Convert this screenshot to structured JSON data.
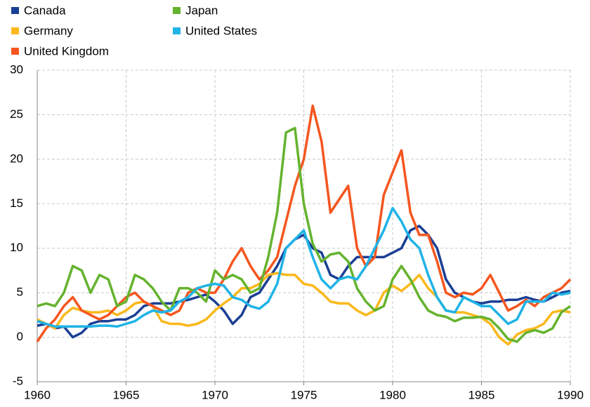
{
  "chart_data": {
    "type": "line",
    "x": [
      1960,
      1960.5,
      1961,
      1961.5,
      1962,
      1962.5,
      1963,
      1963.5,
      1964,
      1964.5,
      1965,
      1965.5,
      1966,
      1966.5,
      1967,
      1967.5,
      1968,
      1968.5,
      1969,
      1969.5,
      1970,
      1970.5,
      1971,
      1971.5,
      1972,
      1972.5,
      1973,
      1973.5,
      1974,
      1974.5,
      1975,
      1975.5,
      1976,
      1976.5,
      1977,
      1977.5,
      1978,
      1978.5,
      1979,
      1979.5,
      1980,
      1980.5,
      1981,
      1981.5,
      1982,
      1982.5,
      1983,
      1983.5,
      1984,
      1984.5,
      1985,
      1985.5,
      1986,
      1986.5,
      1987,
      1987.5,
      1988,
      1988.5,
      1989,
      1989.5,
      1990
    ],
    "series": [
      {
        "name": "Canada",
        "color": "#1b3f94",
        "values": [
          1.3,
          1.5,
          1.0,
          1.2,
          0,
          0.5,
          1.5,
          1.8,
          1.8,
          2.0,
          2.0,
          2.5,
          3.5,
          3.8,
          3.8,
          3.8,
          4.0,
          4.2,
          4.5,
          4.8,
          4.0,
          3.0,
          1.5,
          2.5,
          4.5,
          5.0,
          6.5,
          8.0,
          10.0,
          11.0,
          11.5,
          10.0,
          9.5,
          7.0,
          6.5,
          8.0,
          9.0,
          9.0,
          9.0,
          9.0,
          9.5,
          10.0,
          12.0,
          12.5,
          11.5,
          10.0,
          6.5,
          5.0,
          4.5,
          4.0,
          3.8,
          4.0,
          4.0,
          4.2,
          4.2,
          4.5,
          4.2,
          4.0,
          4.5,
          5.0,
          5.2
        ]
      },
      {
        "name": "Germany",
        "color": "#fbb81b",
        "values": [
          2.0,
          1.5,
          1.0,
          2.5,
          3.3,
          3.0,
          2.8,
          2.8,
          3.0,
          2.5,
          3.0,
          3.8,
          4.0,
          3.5,
          1.8,
          1.5,
          1.5,
          1.3,
          1.5,
          2.0,
          3.0,
          3.8,
          4.5,
          5.5,
          5.5,
          6.0,
          7.0,
          7.2,
          7.0,
          7.0,
          6.0,
          5.8,
          5.0,
          4.0,
          3.8,
          3.8,
          3.0,
          2.5,
          3.0,
          5.0,
          5.8,
          5.2,
          6.0,
          7.0,
          5.5,
          4.5,
          3.0,
          2.8,
          2.8,
          2.5,
          2.2,
          1.5,
          0,
          -0.8,
          0.3,
          0.8,
          1.0,
          1.5,
          2.8,
          3.0,
          2.8
        ]
      },
      {
        "name": "United Kingdom",
        "color": "#f5561f",
        "values": [
          -0.5,
          1.0,
          2.0,
          3.5,
          4.5,
          3.0,
          2.5,
          2.0,
          2.5,
          3.5,
          4.5,
          5.0,
          4.0,
          3.5,
          3.0,
          2.5,
          3.0,
          5.0,
          5.5,
          5.0,
          5.0,
          6.5,
          8.5,
          10.0,
          8.0,
          6.5,
          7.5,
          9.0,
          13.0,
          17.0,
          20.0,
          26.0,
          22.0,
          14.0,
          15.5,
          17.0,
          10.0,
          8.0,
          9.0,
          16.0,
          18.5,
          21.0,
          14.0,
          11.5,
          11.5,
          8.5,
          5.0,
          4.5,
          5.0,
          4.8,
          5.5,
          7.0,
          5.0,
          3.0,
          3.5,
          4.2,
          3.5,
          4.5,
          5.0,
          5.5,
          6.5
        ]
      },
      {
        "name": "Japan",
        "color": "#65b32e",
        "values": [
          3.5,
          3.8,
          3.5,
          5.0,
          8.0,
          7.5,
          5.0,
          7.0,
          6.5,
          3.5,
          4.0,
          7.0,
          6.5,
          5.5,
          4.0,
          3.0,
          5.5,
          5.5,
          5.0,
          4.0,
          7.5,
          6.5,
          7.0,
          6.5,
          5.0,
          5.5,
          9.0,
          14.0,
          23.0,
          23.5,
          15.0,
          10.5,
          8.5,
          9.3,
          9.5,
          8.5,
          5.5,
          4.0,
          3.0,
          3.5,
          6.5,
          8.0,
          6.5,
          4.5,
          3.0,
          2.5,
          2.3,
          1.8,
          2.2,
          2.2,
          2.3,
          2.0,
          1.0,
          -0.2,
          -0.5,
          0.5,
          0.8,
          0.5,
          1.0,
          2.8,
          3.5
        ]
      },
      {
        "name": "United States",
        "color": "#1fb3e6",
        "values": [
          1.8,
          1.5,
          1.2,
          1.2,
          1.2,
          1.2,
          1.2,
          1.3,
          1.3,
          1.2,
          1.5,
          1.8,
          2.5,
          3.0,
          2.8,
          3.0,
          4.0,
          4.5,
          5.5,
          5.8,
          6.0,
          5.8,
          4.5,
          4.2,
          3.5,
          3.2,
          4.0,
          6.0,
          10.0,
          11.0,
          12.0,
          9.0,
          6.5,
          5.5,
          6.5,
          6.8,
          6.5,
          8.0,
          10.0,
          12.0,
          14.5,
          13.0,
          11.0,
          10.0,
          7.0,
          4.5,
          3.0,
          2.8,
          4.5,
          4.0,
          3.5,
          3.5,
          2.5,
          1.5,
          2.0,
          4.0,
          4.0,
          4.0,
          5.0,
          4.8,
          5.0
        ]
      }
    ],
    "xlim": [
      1960,
      1990
    ],
    "xticks": [
      1960,
      1965,
      1970,
      1975,
      1980,
      1985,
      1990
    ],
    "ylim": [
      -5,
      30
    ],
    "yticks": [
      -5,
      0,
      5,
      10,
      15,
      20,
      25,
      30
    ],
    "grid": true,
    "legend_position": "top-left"
  }
}
